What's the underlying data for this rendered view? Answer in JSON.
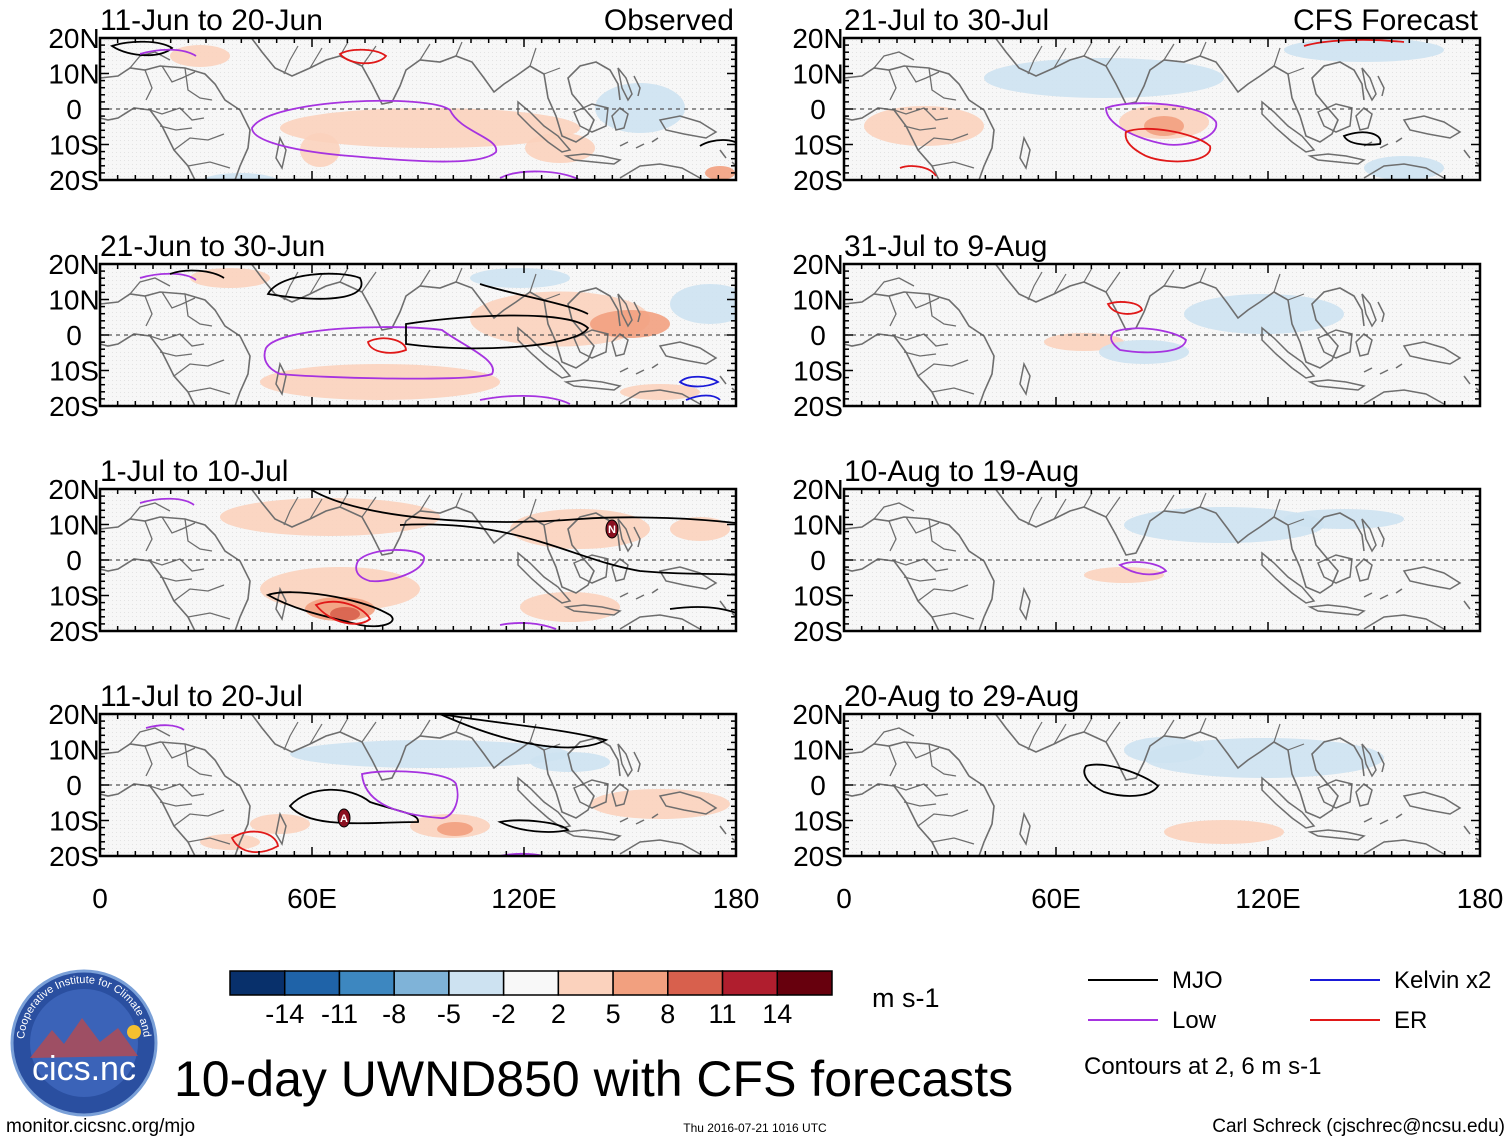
{
  "figure": {
    "title": "10-day UWND850 with CFS forecasts",
    "url": "monitor.cicsnc.org/mjo",
    "timestamp": "Thu 2016-07-21 1016 UTC",
    "author": "Carl Schreck (cjschrec@ncsu.edu)",
    "logo_text": "cics.nc",
    "logo_ring_text": "Cooperative Institute for Climate and Satellites"
  },
  "left_column_label": "Observed",
  "right_column_label": "CFS Forecast",
  "panels_left": [
    {
      "title": "11-Jun to 20-Jun"
    },
    {
      "title": "21-Jun to 30-Jun"
    },
    {
      "title": "1-Jul to 10-Jul"
    },
    {
      "title": "11-Jul to 20-Jul"
    }
  ],
  "panels_right": [
    {
      "title": "21-Jul to 30-Jul"
    },
    {
      "title": "31-Jul to 9-Aug"
    },
    {
      "title": "10-Aug to 19-Aug"
    },
    {
      "title": "20-Aug to 29-Aug"
    }
  ],
  "lat_labels": [
    "20N",
    "10N",
    "0",
    "10S",
    "20S"
  ],
  "lon_labels": [
    "0",
    "60E",
    "120E",
    "180"
  ],
  "colorbar": {
    "unit": "m s-1",
    "tick_labels": [
      "-14",
      "-11",
      "-8",
      "-5",
      "-2",
      "2",
      "5",
      "8",
      "11",
      "14"
    ],
    "colors": [
      "#08306b",
      "#1f63a8",
      "#3d87c0",
      "#7fb3d8",
      "#cde2f1",
      "#f8f8f8",
      "#fbd2bd",
      "#f2a07f",
      "#d8604d",
      "#b01e2e",
      "#67000d"
    ]
  },
  "legend": {
    "items": [
      {
        "label": "MJO",
        "color": "#000000"
      },
      {
        "label": "Kelvin x2",
        "color": "#1a1ad8"
      },
      {
        "label": "Low",
        "color": "#a633e0"
      },
      {
        "label": "ER",
        "color": "#e01818"
      }
    ],
    "note": "Contours at 2, 6 m s-1"
  },
  "storm_markers": [
    {
      "letter": "N"
    },
    {
      "letter": "A"
    }
  ]
}
